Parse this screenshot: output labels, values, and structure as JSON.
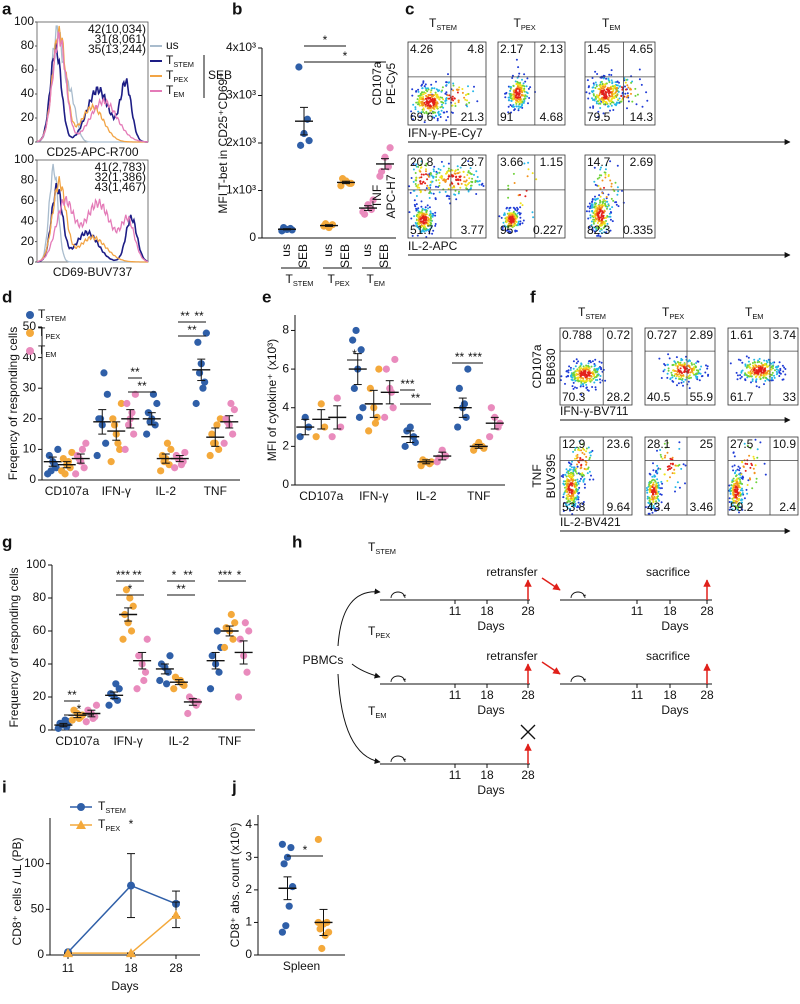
{
  "panels": {
    "a": {
      "label": "a",
      "yticks": [
        0,
        20,
        40,
        60,
        80,
        100
      ],
      "legend": [
        {
          "t": "us"
        },
        {
          "t": "T",
          "sub": "STEM"
        },
        {
          "t": "T",
          "sub": "PEX"
        },
        {
          "t": "T",
          "sub": "EM"
        }
      ],
      "legend_group": "SEB",
      "colors": [
        "#a9bccd",
        "#1d1d85",
        "#f2a445",
        "#e47bb8"
      ],
      "plots": [
        {
          "annotations": [
            "42(10,034)",
            "31(8,061)",
            "35(13,244)"
          ],
          "xlabel": "CD25-APC-R700"
        },
        {
          "annotations": [
            "41(2,783)",
            "32(1,386)",
            "43(1,467)"
          ],
          "xlabel": "CD69-BUV737"
        }
      ]
    },
    "b": {
      "label": "b",
      "type": "dot",
      "ylabel": "MFI T-bet in CD25⁺CD69⁺",
      "ylim": [
        0,
        4000
      ],
      "yticks": [
        0,
        {
          "value": 1000,
          "label": "1x10³"
        },
        {
          "value": 2000,
          "label": "2x10³"
        },
        {
          "value": 3000,
          "label": "3x10³"
        },
        {
          "value": 4000,
          "label": "4x10³"
        }
      ],
      "categories": [
        "us",
        "SEB",
        "us",
        "SEB",
        "us",
        "SEB"
      ],
      "groups": [
        {
          "t": "T",
          "sub": "STEM"
        },
        {
          "t": "T",
          "sub": "PEX"
        },
        {
          "t": "T",
          "sub": "EM"
        }
      ],
      "colors": [
        "#2f5fa8",
        "#2f5fa8",
        "#f4a93b",
        "#f4a93b",
        "#e98bbd",
        "#e98bbd"
      ],
      "points": [
        [
          150,
          200,
          180,
          220,
          170
        ],
        [
          3600,
          2500,
          2200,
          1950,
          2050
        ],
        [
          250,
          280,
          220,
          300
        ],
        [
          1100,
          1150,
          1200,
          1250,
          1150
        ],
        [
          550,
          600,
          700,
          500,
          800
        ],
        [
          1300,
          1500,
          1700,
          1400,
          1900
        ]
      ],
      "mean": [
        184,
        2460,
        262,
        1170,
        630,
        1560
      ],
      "sem": [
        12,
        290,
        18,
        25,
        50,
        110
      ],
      "significance": [
        "*",
        "*"
      ]
    },
    "c": {
      "label": "c",
      "titles": [
        {
          "t": "T",
          "sub": "STEM"
        },
        {
          "t": "T",
          "sub": "PEX"
        },
        {
          "t": "T",
          "sub": "EM"
        }
      ],
      "row_labels": [
        [
          "CD107a",
          "PE-Cy5"
        ],
        [
          "TNF",
          "APC-H7"
        ]
      ],
      "x_labels": [
        "IFN-γ-PE-Cy7",
        "IL-2-APC"
      ],
      "quadrants": [
        [
          [
            4.26,
            4.8,
            69.6,
            21.3
          ],
          [
            2.17,
            2.13,
            91,
            4.68
          ],
          [
            1.45,
            4.65,
            79.5,
            14.3
          ]
        ],
        [
          [
            20.8,
            23.7,
            51.7,
            3.77
          ],
          [
            3.66,
            1.15,
            95,
            0.227
          ],
          [
            14.7,
            2.69,
            82.3,
            0.335
          ]
        ]
      ]
    },
    "d": {
      "label": "d",
      "type": "dot",
      "ylabel": "Freqency of responding cells",
      "ylim": [
        0,
        50
      ],
      "yticks": [
        0,
        10,
        20,
        30,
        40,
        50
      ],
      "categories": [
        "CD107a",
        "IFN-γ",
        "IL-2",
        "TNF"
      ],
      "series": [
        {
          "name": {
            "t": "T",
            "sub": "STEM"
          },
          "color": "#2f5fa8",
          "points": [
            [
              2,
              4,
              6,
              8,
              10,
              5,
              3
            ],
            [
              8,
              12,
              18,
              20,
              28,
              35,
              20
            ],
            [
              15,
              18,
              20,
              22,
              25,
              28,
              19
            ],
            [
              25,
              32,
              38,
              45,
              48,
              30,
              35
            ]
          ],
          "mean": [
            6,
            19,
            20,
            36
          ],
          "sem": [
            1.5,
            4,
            2,
            3.5
          ]
        },
        {
          "name": {
            "t": "T",
            "sub": "PEX"
          },
          "color": "#f4a93b",
          "points": [
            [
              3,
              4,
              5,
              7,
              9,
              6,
              2
            ],
            [
              6,
              10,
              15,
              20,
              25,
              12,
              18
            ],
            [
              3,
              5,
              7,
              8,
              10,
              12,
              6
            ],
            [
              8,
              10,
              12,
              15,
              20,
              18,
              12
            ]
          ],
          "mean": [
            5,
            16,
            7,
            14
          ],
          "sem": [
            1,
            3,
            1.5,
            3
          ]
        },
        {
          "name": {
            "t": "T",
            "sub": "EM"
          },
          "color": "#e98bbd",
          "points": [
            [
              2,
              4,
              6,
              8,
              12,
              10,
              7
            ],
            [
              10,
              15,
              20,
              25,
              28,
              22,
              18
            ],
            [
              4,
              6,
              7,
              8,
              9,
              5,
              7
            ],
            [
              12,
              15,
              18,
              20,
              23,
              25,
              19
            ]
          ],
          "mean": [
            7,
            20,
            7,
            19
          ],
          "sem": [
            1.5,
            3,
            1,
            2
          ]
        }
      ],
      "significance": [
        "**",
        "**",
        "**",
        "**",
        "**"
      ]
    },
    "e": {
      "label": "e",
      "type": "dot",
      "ylabel": "MFI of cytokine⁺ (x10³)",
      "ylim": [
        0,
        8.8
      ],
      "yticks": [
        0,
        2,
        4,
        6,
        8
      ],
      "categories": [
        "CD107a",
        "IFN-γ",
        "IL-2",
        "TNF"
      ],
      "series": [
        {
          "color": "#2f5fa8",
          "points": [
            [
              2.5,
              3,
              3.5
            ],
            [
              7.5,
              7,
              6,
              5,
              4,
              3.5,
              8
            ],
            [
              2,
              2.5,
              3,
              2.8,
              2.2
            ],
            [
              3,
              3.5,
              4,
              5,
              6,
              4.2
            ]
          ],
          "mean": [
            3,
            6,
            2.5,
            4
          ],
          "sem": [
            0.4,
            0.8,
            0.3,
            0.5
          ]
        },
        {
          "color": "#f4a93b",
          "points": [
            [
              2.5,
              3,
              4.2
            ],
            [
              2.8,
              3.5,
              4,
              5,
              6,
              3.2
            ],
            [
              1,
              1.1,
              1.2,
              1.3,
              1.2
            ],
            [
              1.8,
              2,
              2.2,
              2,
              1.9
            ]
          ],
          "mean": [
            3.4,
            4.2,
            1.2,
            2
          ],
          "sem": [
            0.5,
            0.7,
            0.1,
            0.1
          ]
        },
        {
          "color": "#e98bbd",
          "points": [
            [
              2.5,
              3,
              4.5
            ],
            [
              3.5,
              4,
              5,
              6,
              6.5,
              4.8
            ],
            [
              1.2,
              1.5,
              1.8,
              1.4
            ],
            [
              2.5,
              3,
              3.5,
              4,
              3.2
            ]
          ],
          "mean": [
            3.5,
            4.8,
            1.5,
            3.2
          ],
          "sem": [
            0.6,
            0.6,
            0.2,
            0.3
          ]
        }
      ],
      "significance": [
        "*",
        "***",
        "**",
        "**",
        "***"
      ]
    },
    "f": {
      "label": "f",
      "titles": [
        {
          "t": "T",
          "sub": "STEM"
        },
        {
          "t": "T",
          "sub": "PEX"
        },
        {
          "t": "T",
          "sub": "EM"
        }
      ],
      "row_labels": [
        [
          "CD107a",
          "BB630"
        ],
        [
          "TNF",
          "BUV395"
        ]
      ],
      "x_labels": [
        "IFN-γ-BV711",
        "IL-2-BV421"
      ],
      "quadrants": [
        [
          [
            0.788,
            0.72,
            70.3,
            28.2
          ],
          [
            0.727,
            2.89,
            40.5,
            55.9
          ],
          [
            1.61,
            3.74,
            61.7,
            33
          ]
        ],
        [
          [
            12.9,
            23.6,
            53.8,
            9.64
          ],
          [
            28.1,
            25,
            43.4,
            3.46
          ],
          [
            27.5,
            10.9,
            59.2,
            2.4
          ]
        ]
      ]
    },
    "g": {
      "label": "g",
      "type": "dot",
      "ylabel": "Frequency of responding cells",
      "ylim": [
        0,
        100
      ],
      "yticks": [
        0,
        20,
        40,
        60,
        80,
        100
      ],
      "categories": [
        "CD107a",
        "IFN-γ",
        "IL-2",
        "TNF"
      ],
      "series": [
        {
          "color": "#2f5fa8",
          "points": [
            [
              1,
              2,
              3,
              4,
              5,
              6
            ],
            [
              15,
              18,
              20,
              22,
              25,
              28
            ],
            [
              30,
              35,
              38,
              40,
              45,
              28
            ],
            [
              25,
              35,
              40,
              45,
              50,
              60
            ]
          ],
          "mean": [
            3,
            21,
            37,
            42
          ],
          "sem": [
            1,
            2,
            3,
            5
          ]
        },
        {
          "color": "#f4a93b",
          "points": [
            [
              6,
              8,
              10,
              12,
              9,
              7
            ],
            [
              55,
              60,
              65,
              70,
              75,
              80,
              85
            ],
            [
              25,
              28,
              30,
              32,
              27,
              30
            ],
            [
              50,
              55,
              60,
              62,
              65,
              70
            ]
          ],
          "mean": [
            9,
            70,
            29,
            60
          ],
          "sem": [
            1.5,
            4,
            1.5,
            3
          ]
        },
        {
          "color": "#e98bbd",
          "points": [
            [
              5,
              8,
              10,
              12,
              15,
              7
            ],
            [
              25,
              35,
              40,
              45,
              55,
              30
            ],
            [
              10,
              15,
              18,
              20,
              17
            ],
            [
              20,
              35,
              45,
              55,
              60,
              65
            ]
          ],
          "mean": [
            10,
            42,
            17,
            47
          ],
          "sem": [
            2,
            5,
            2,
            7
          ]
        }
      ],
      "significance": [
        "**",
        "*",
        "***",
        "**",
        "*",
        "*",
        "**",
        "**",
        "***",
        "*"
      ]
    },
    "h": {
      "label": "h",
      "source": "PBMCs",
      "rows": [
        {
          "cell": {
            "t": "T",
            "sub": "STEM"
          },
          "event": "retransfer",
          "end": "sacrifice",
          "timelines": [
            {
              "ticks": [
                "11",
                "18",
                "28"
              ],
              "xlabel": "Days"
            },
            {
              "ticks": [
                "11",
                "18",
                "28"
              ],
              "xlabel": "Days"
            }
          ]
        },
        {
          "cell": {
            "t": "T",
            "sub": "PEX"
          },
          "event": "retransfer",
          "end": "sacrifice",
          "timelines": [
            {
              "ticks": [
                "11",
                "18",
                "28"
              ],
              "xlabel": "Days"
            },
            {
              "ticks": [
                "11",
                "18",
                "28"
              ],
              "xlabel": "Days"
            }
          ]
        },
        {
          "cell": {
            "t": "T",
            "sub": "EM"
          },
          "timelines": [
            {
              "ticks": [
                "11",
                "18",
                "28"
              ],
              "xlabel": "Days"
            }
          ]
        }
      ]
    },
    "i": {
      "label": "i",
      "type": "line",
      "ylabel": "CD8⁺ cells / uL (PB)",
      "xlabel": "Days",
      "categories": [
        "11",
        "18",
        "28"
      ],
      "ylim": [
        0,
        150
      ],
      "yticks": [
        0,
        50,
        100
      ],
      "series": [
        {
          "name": {
            "t": "T",
            "sub": "STEM"
          },
          "color": "#2f5fa8",
          "marker": "circle",
          "values": [
            3,
            76,
            56
          ],
          "errors": [
            0,
            35,
            14
          ]
        },
        {
          "name": {
            "t": "T",
            "sub": "PEX"
          },
          "color": "#f4a93b",
          "marker": "triangle",
          "values": [
            2,
            2,
            44
          ],
          "errors": [
            0,
            0,
            14
          ]
        }
      ],
      "annotations": [
        "*"
      ]
    },
    "j": {
      "label": "j",
      "type": "dot",
      "ylabel": "CD8⁺ abs. count (x10⁶)",
      "ylim": [
        0,
        4.3
      ],
      "yticks": [
        0,
        1,
        2,
        3,
        4
      ],
      "categories": [
        "Spleen"
      ],
      "series": [
        {
          "color": "#2f5fa8",
          "points": [
            [
              3.4,
              3.3,
              3.0,
              2.8,
              2.1,
              1.5,
              0.9,
              0.7
            ]
          ],
          "mean": [
            2.05
          ],
          "sem": [
            0.35
          ]
        },
        {
          "color": "#f4a93b",
          "points": [
            [
              3.55,
              1.0,
              0.95,
              0.8,
              0.7,
              0.6,
              0.2,
              1.0
            ]
          ],
          "mean": [
            1.0
          ],
          "sem": [
            0.4
          ]
        }
      ],
      "significance": [
        "*"
      ]
    }
  }
}
